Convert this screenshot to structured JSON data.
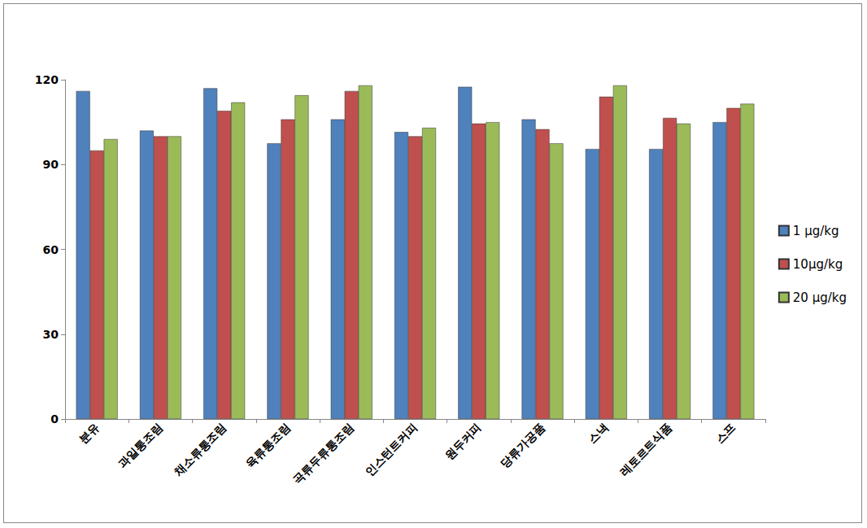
{
  "chart_data": {
    "type": "bar",
    "categories": [
      "분유",
      "과일통조림",
      "채소류통조림",
      "육류통조림",
      "곡류두류통조림",
      "인스턴트커피",
      "원두커피",
      "당류가공품",
      "스낵",
      "레토르트식품",
      "스프"
    ],
    "series": [
      {
        "name": "1 µg/kg",
        "color": "#4f81bd",
        "values": [
          116,
          102,
          117,
          97.5,
          106,
          101.5,
          117.5,
          106,
          95.5,
          95.5,
          105
        ]
      },
      {
        "name": "10µg/kg",
        "color": "#c0504d",
        "values": [
          95,
          100,
          109,
          106,
          116,
          100,
          104.5,
          102.5,
          114,
          106.5,
          110
        ]
      },
      {
        "name": "20 µg/kg",
        "color": "#9bbb59",
        "values": [
          99,
          100,
          112,
          114.5,
          118,
          103,
          105,
          97.5,
          118,
          104.5,
          111.5
        ]
      }
    ],
    "ylim": [
      0,
      120
    ],
    "yticks": [
      0,
      30,
      60,
      90,
      120
    ],
    "grid": false,
    "legend": "right"
  }
}
